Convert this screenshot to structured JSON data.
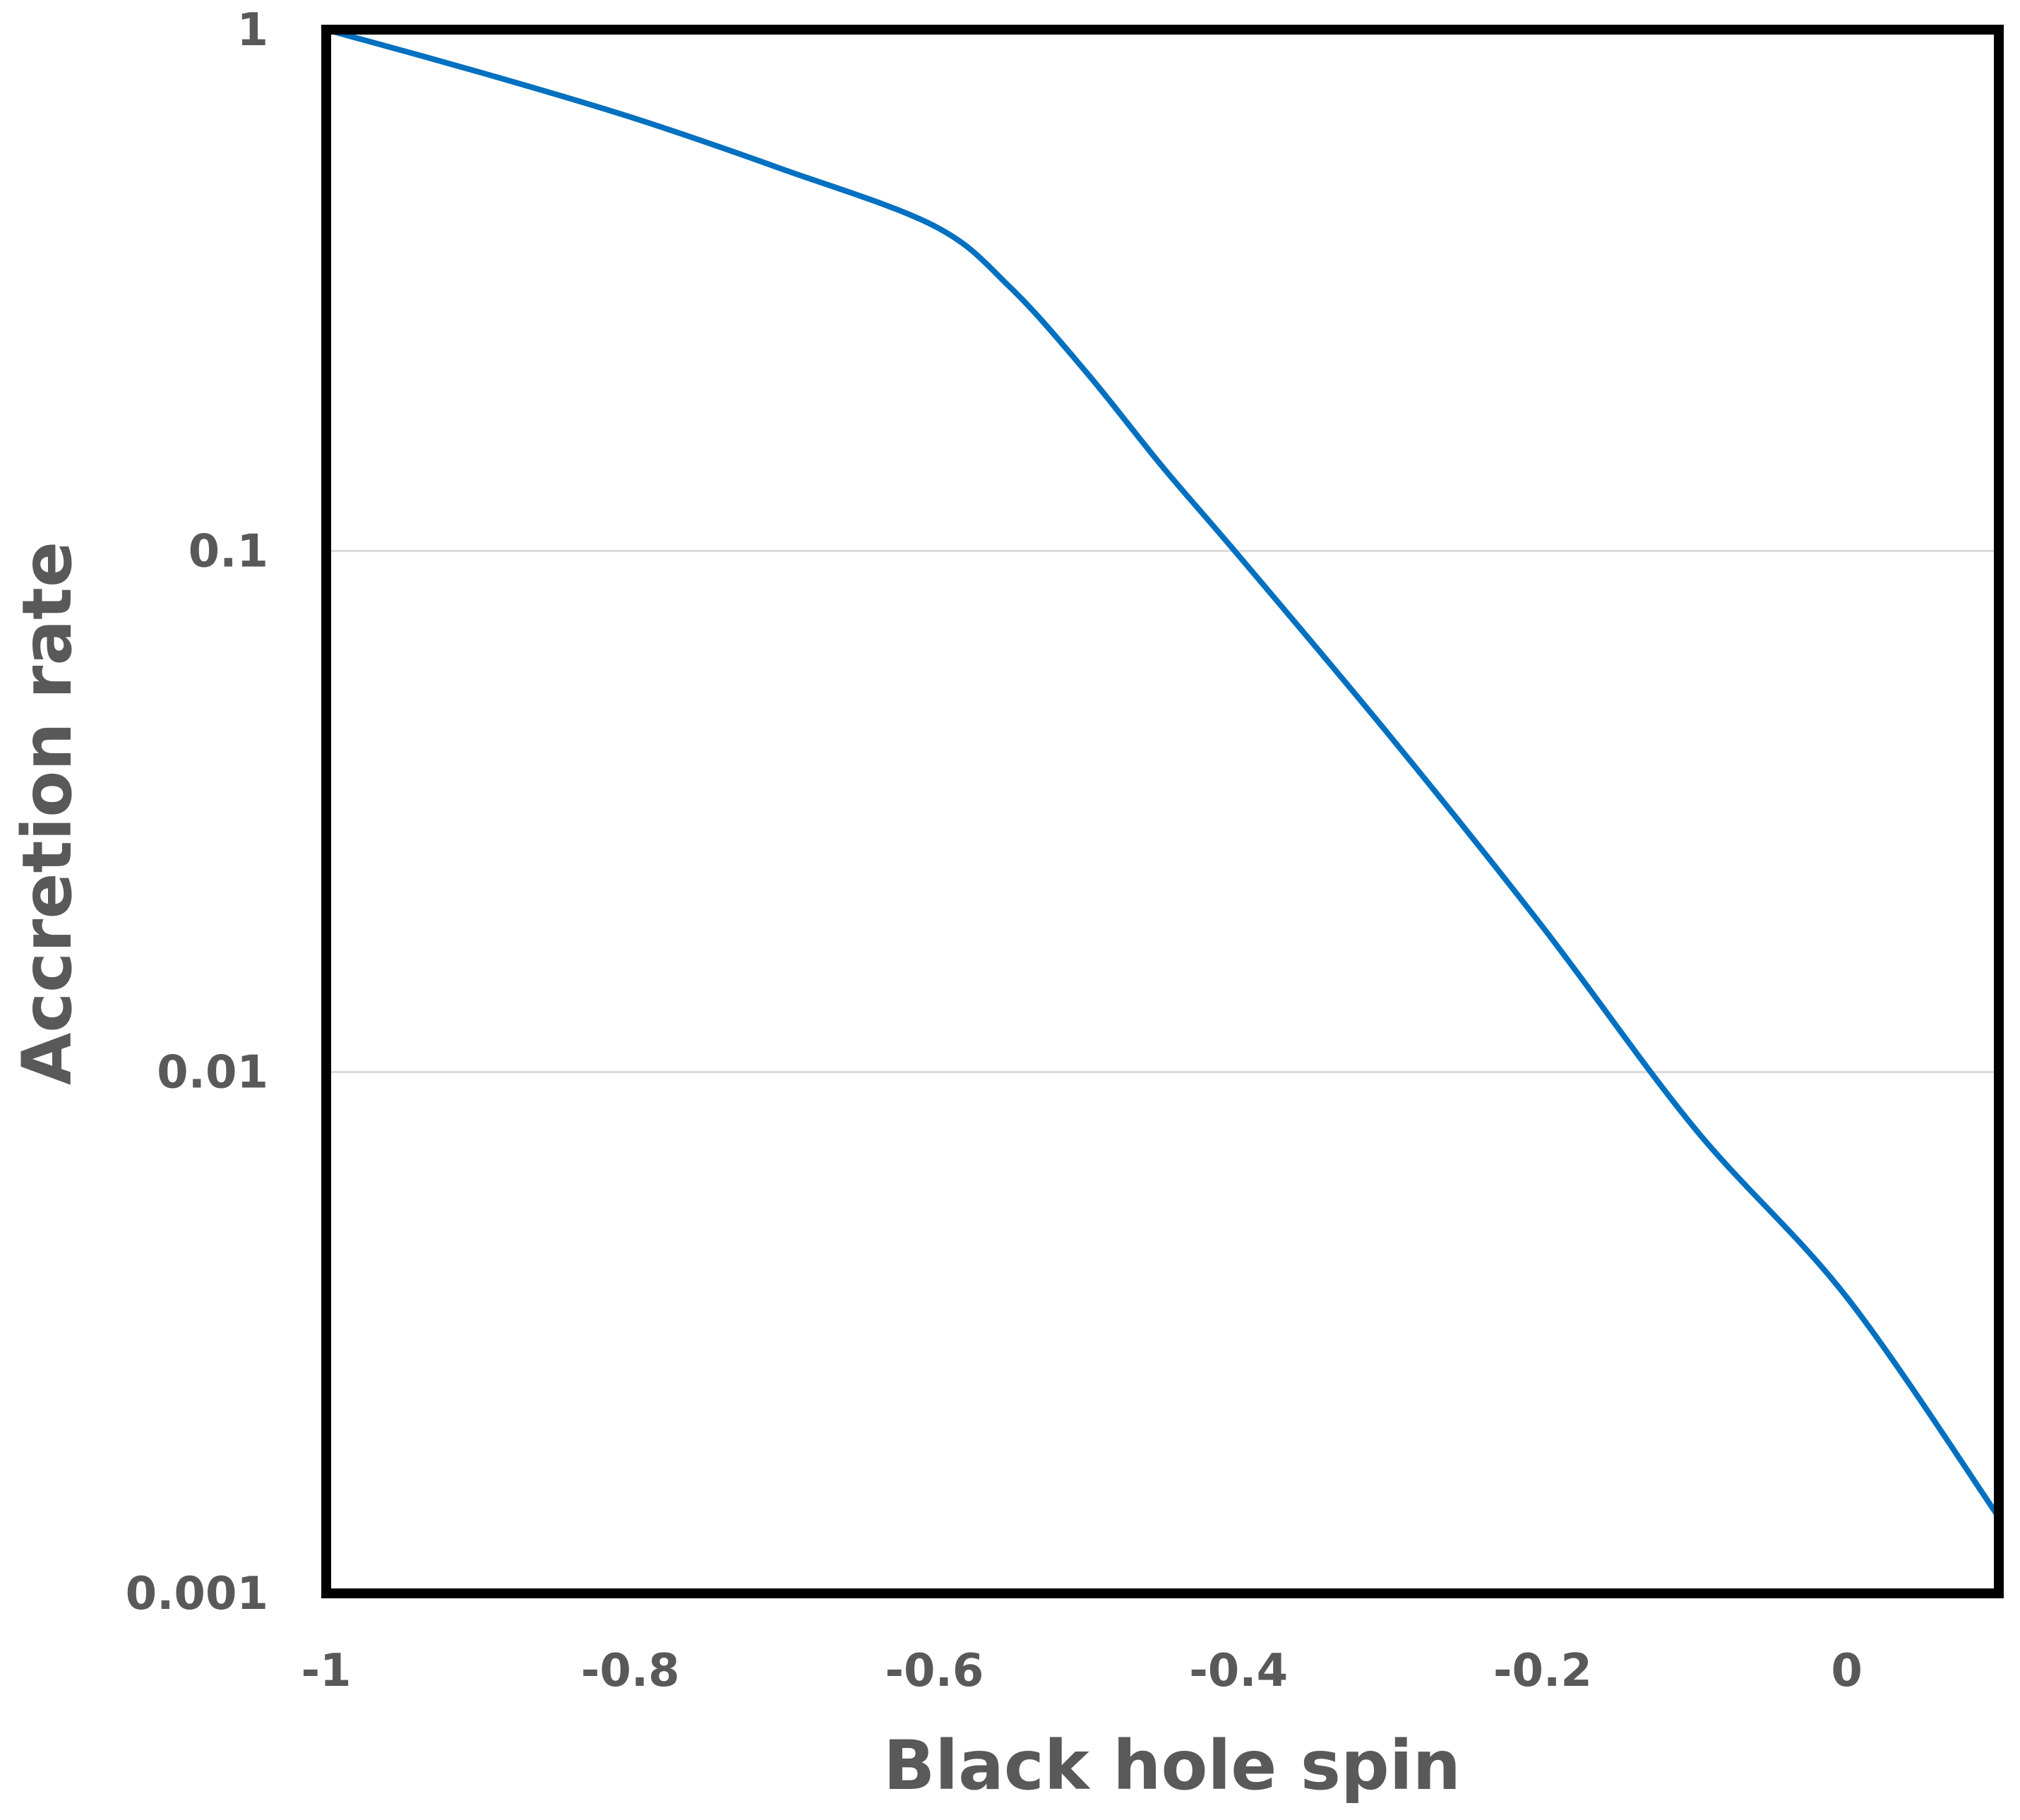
{
  "chart_data": {
    "type": "line",
    "xlabel": "Black hole spin",
    "ylabel": "Accretion rate",
    "xlim": [
      -1,
      0.1
    ],
    "ylim": [
      0.001,
      1
    ],
    "y_scale": "log",
    "grid": "horizontal major gridlines",
    "x_ticks": [
      {
        "value": -1,
        "label": "-1"
      },
      {
        "value": -0.8,
        "label": "-0.8"
      },
      {
        "value": -0.6,
        "label": "-0.6"
      },
      {
        "value": -0.4,
        "label": "-0.4"
      },
      {
        "value": -0.2,
        "label": "-0.2"
      },
      {
        "value": 0,
        "label": "0"
      }
    ],
    "y_ticks": [
      {
        "value": 1,
        "label": "1"
      },
      {
        "value": 0.1,
        "label": "0.1"
      },
      {
        "value": 0.01,
        "label": "0.01"
      },
      {
        "value": 0.001,
        "label": "0.001"
      }
    ],
    "series": [
      {
        "color": "#0070c0",
        "x": [
          -1.0,
          -0.9,
          -0.8,
          -0.7,
          -0.6,
          -0.55,
          -0.5,
          -0.45,
          -0.4,
          -0.3,
          -0.2,
          -0.1,
          0.0,
          0.1
        ],
        "y": [
          1.0,
          0.83,
          0.68,
          0.54,
          0.42,
          0.32,
          0.22,
          0.145,
          0.098,
          0.044,
          0.019,
          0.0078,
          0.0037,
          0.0014
        ]
      }
    ]
  }
}
